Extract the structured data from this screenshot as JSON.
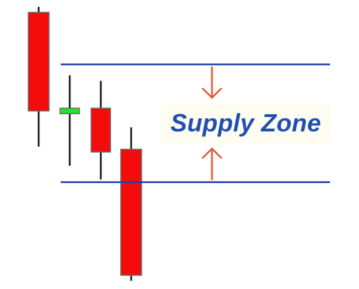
{
  "chart_data": {
    "type": "candlestick",
    "title": "",
    "xlabel": "",
    "ylabel": "",
    "ylim": [
      0,
      100
    ],
    "candles": [
      {
        "open": 62,
        "high": 100,
        "low": 49,
        "close": 98,
        "color": "#f20c0c"
      },
      {
        "open": 61,
        "high": 75,
        "low": 42,
        "close": 63,
        "color": "#22e622"
      },
      {
        "open": 63,
        "high": 73,
        "low": 37,
        "close": 47,
        "color": "#f20c0c"
      },
      {
        "open": 48,
        "high": 56,
        "low": 0,
        "close": 2,
        "color": "#f20c0c"
      }
    ],
    "zone": {
      "upper": 79,
      "lower": 36,
      "color": "#1f3fa8"
    },
    "annotation": {
      "text": "Supply Zone",
      "color": "#1f4fb0",
      "arrow_color": "#e8542a"
    }
  }
}
